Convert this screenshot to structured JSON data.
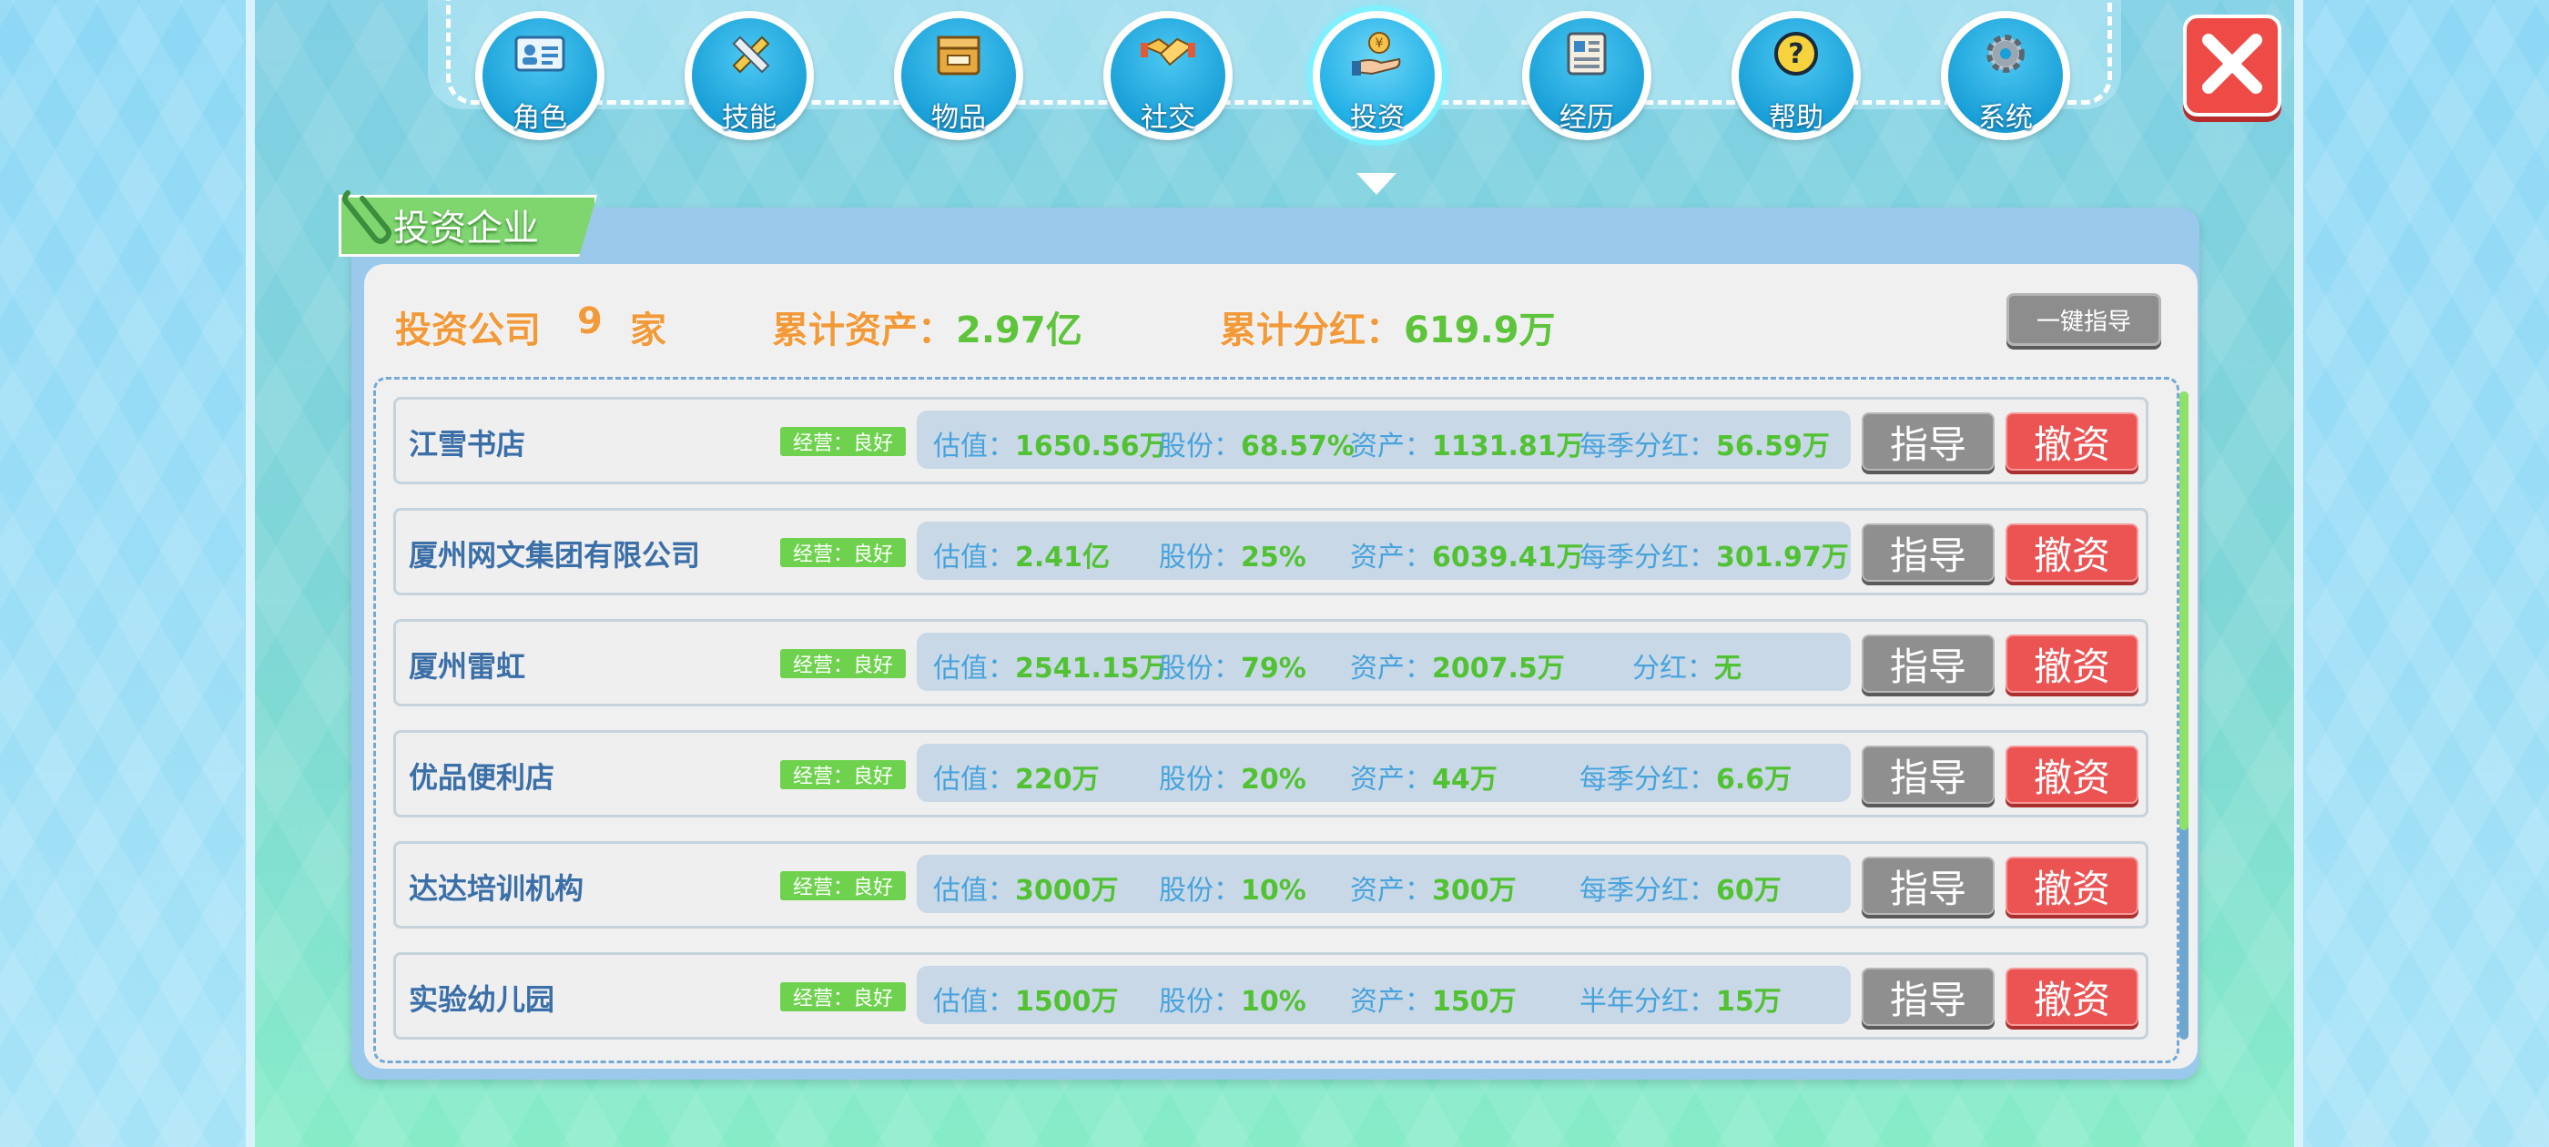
{
  "nav": {
    "items": [
      {
        "label": "角色",
        "icon": "id-card-icon",
        "active": false
      },
      {
        "label": "技能",
        "icon": "pencil-ruler-icon",
        "active": false
      },
      {
        "label": "物品",
        "icon": "box-icon",
        "active": false
      },
      {
        "label": "社交",
        "icon": "handshake-icon",
        "active": false
      },
      {
        "label": "投资",
        "icon": "hand-coin-icon",
        "active": true
      },
      {
        "label": "经历",
        "icon": "document-icon",
        "active": false
      },
      {
        "label": "帮助",
        "icon": "question-icon",
        "active": false
      },
      {
        "label": "系统",
        "icon": "gear-icon",
        "active": false
      }
    ]
  },
  "panel": {
    "title": "投资企业",
    "summary": {
      "companies_label": "投资公司",
      "companies_count": "9",
      "companies_unit": "家",
      "assets_label": "累计资产：",
      "assets_value": "2.97亿",
      "dividend_label": "累计分红：",
      "dividend_value": "619.9万"
    },
    "guide_all_label": "一键指导",
    "guide_label": "指导",
    "divest_label": "撤资",
    "status_badge": "经营：良好",
    "rows": [
      {
        "name": "江雪书店",
        "val_k": "估值：",
        "val": "1650.56万",
        "share_k": "股份：",
        "share": "68.57%",
        "asset_k": "资产：",
        "asset": "1131.81万",
        "div_k": "每季分红：",
        "div": "56.59万"
      },
      {
        "name": "厦州网文集团有限公司",
        "val_k": "估值：",
        "val": "2.41亿",
        "share_k": "股份：",
        "share": "25%",
        "asset_k": "资产：",
        "asset": "6039.41万",
        "div_k": "每季分红：",
        "div": "301.97万"
      },
      {
        "name": "厦州雷虹",
        "val_k": "估值：",
        "val": "2541.15万",
        "share_k": "股份：",
        "share": "79%",
        "asset_k": "资产：",
        "asset": "2007.5万",
        "div_k": "分红：",
        "div": "无"
      },
      {
        "name": "优品便利店",
        "val_k": "估值：",
        "val": "220万",
        "share_k": "股份：",
        "share": "20%",
        "asset_k": "资产：",
        "asset": "44万",
        "div_k": "每季分红：",
        "div": "6.6万"
      },
      {
        "name": "达达培训机构",
        "val_k": "估值：",
        "val": "3000万",
        "share_k": "股份：",
        "share": "10%",
        "asset_k": "资产：",
        "asset": "300万",
        "div_k": "每季分红：",
        "div": "60万"
      },
      {
        "name": "实验幼儿园",
        "val_k": "估值：",
        "val": "1500万",
        "share_k": "股份：",
        "share": "10%",
        "asset_k": "资产：",
        "asset": "150万",
        "div_k": "半年分红：",
        "div": "15万"
      }
    ]
  },
  "colors": {
    "accent_orange": "#f29a3a",
    "value_green": "#52c234",
    "label_blue": "#48a3dc",
    "divest_red": "#ec5454"
  }
}
